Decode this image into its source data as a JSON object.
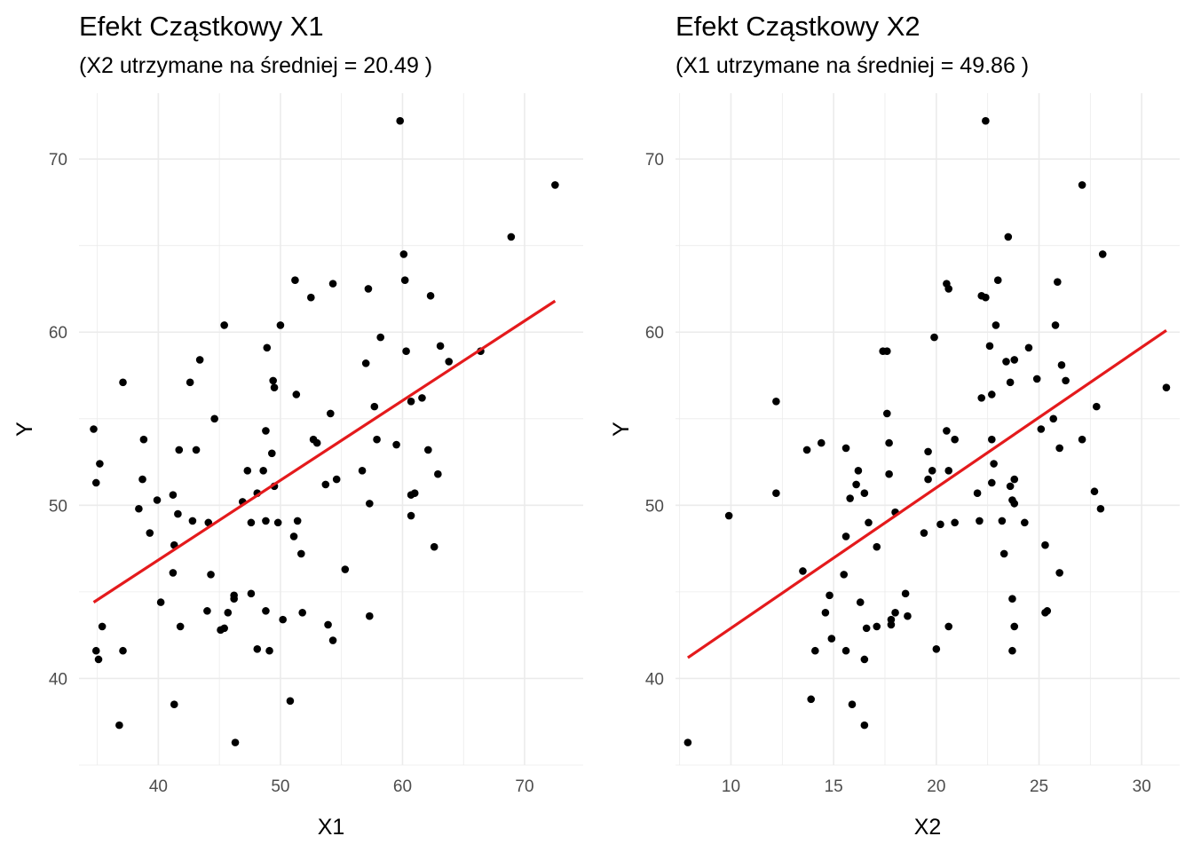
{
  "chart_data": [
    {
      "type": "scatter",
      "title": "Efekt Cząstkowy X1",
      "subtitle": "(X2 utrzymane na średniej = 20.49 )",
      "xlabel": "X1",
      "ylabel": "Y",
      "xlim": [
        33.5,
        74.8
      ],
      "ylim": [
        35,
        73.8
      ],
      "xticks": [
        40,
        50,
        60,
        70
      ],
      "yticks": [
        40,
        50,
        60,
        70
      ],
      "grid": true,
      "colors": {
        "points": "#000000",
        "fit_line": "#e41a1c",
        "grid": "#ebebeb"
      },
      "fit_line": {
        "x": [
          34.7,
          72.5
        ],
        "y": [
          44.4,
          61.8
        ]
      },
      "points": [
        {
          "x": 34.7,
          "y": 54.4
        },
        {
          "x": 34.9,
          "y": 51.3
        },
        {
          "x": 35.2,
          "y": 52.4
        },
        {
          "x": 35.4,
          "y": 43.0
        },
        {
          "x": 34.9,
          "y": 41.6
        },
        {
          "x": 35.1,
          "y": 41.1
        },
        {
          "x": 36.8,
          "y": 37.3
        },
        {
          "x": 37.1,
          "y": 57.1
        },
        {
          "x": 37.1,
          "y": 41.6
        },
        {
          "x": 38.4,
          "y": 49.8
        },
        {
          "x": 38.7,
          "y": 51.5
        },
        {
          "x": 38.8,
          "y": 53.8
        },
        {
          "x": 39.3,
          "y": 48.4
        },
        {
          "x": 39.9,
          "y": 50.3
        },
        {
          "x": 40.2,
          "y": 44.4
        },
        {
          "x": 41.2,
          "y": 50.6
        },
        {
          "x": 41.3,
          "y": 47.7
        },
        {
          "x": 41.2,
          "y": 46.1
        },
        {
          "x": 41.3,
          "y": 38.5
        },
        {
          "x": 41.6,
          "y": 49.5
        },
        {
          "x": 41.7,
          "y": 53.2
        },
        {
          "x": 41.8,
          "y": 43.0
        },
        {
          "x": 42.6,
          "y": 57.1
        },
        {
          "x": 42.8,
          "y": 49.1
        },
        {
          "x": 43.1,
          "y": 53.2
        },
        {
          "x": 43.4,
          "y": 58.4
        },
        {
          "x": 44.0,
          "y": 43.9
        },
        {
          "x": 44.1,
          "y": 49.0
        },
        {
          "x": 44.3,
          "y": 46.0
        },
        {
          "x": 44.6,
          "y": 55.0
        },
        {
          "x": 45.1,
          "y": 42.8
        },
        {
          "x": 45.4,
          "y": 42.9
        },
        {
          "x": 45.4,
          "y": 60.4
        },
        {
          "x": 45.7,
          "y": 43.8
        },
        {
          "x": 46.2,
          "y": 44.8
        },
        {
          "x": 46.2,
          "y": 44.6
        },
        {
          "x": 46.3,
          "y": 36.3
        },
        {
          "x": 46.9,
          "y": 50.2
        },
        {
          "x": 47.3,
          "y": 52.0
        },
        {
          "x": 47.6,
          "y": 49.0
        },
        {
          "x": 47.6,
          "y": 44.9
        },
        {
          "x": 48.1,
          "y": 41.7
        },
        {
          "x": 48.1,
          "y": 50.7
        },
        {
          "x": 48.6,
          "y": 52.0
        },
        {
          "x": 48.8,
          "y": 54.3
        },
        {
          "x": 48.9,
          "y": 59.1
        },
        {
          "x": 48.8,
          "y": 49.1
        },
        {
          "x": 48.8,
          "y": 43.9
        },
        {
          "x": 49.1,
          "y": 41.6
        },
        {
          "x": 49.3,
          "y": 53.0
        },
        {
          "x": 49.4,
          "y": 57.2
        },
        {
          "x": 49.5,
          "y": 56.8
        },
        {
          "x": 49.5,
          "y": 51.1
        },
        {
          "x": 49.8,
          "y": 49.0
        },
        {
          "x": 50.0,
          "y": 60.4
        },
        {
          "x": 50.2,
          "y": 43.4
        },
        {
          "x": 50.8,
          "y": 38.7
        },
        {
          "x": 51.1,
          "y": 48.2
        },
        {
          "x": 51.2,
          "y": 63.0
        },
        {
          "x": 51.3,
          "y": 56.4
        },
        {
          "x": 51.4,
          "y": 49.1
        },
        {
          "x": 51.7,
          "y": 47.2
        },
        {
          "x": 51.8,
          "y": 43.8
        },
        {
          "x": 52.5,
          "y": 62.0
        },
        {
          "x": 52.7,
          "y": 53.8
        },
        {
          "x": 53.0,
          "y": 53.6
        },
        {
          "x": 53.7,
          "y": 51.2
        },
        {
          "x": 53.9,
          "y": 43.1
        },
        {
          "x": 54.1,
          "y": 55.3
        },
        {
          "x": 54.3,
          "y": 62.8
        },
        {
          "x": 54.3,
          "y": 42.2
        },
        {
          "x": 54.6,
          "y": 51.5
        },
        {
          "x": 55.3,
          "y": 46.3
        },
        {
          "x": 56.7,
          "y": 52.0
        },
        {
          "x": 57.0,
          "y": 58.2
        },
        {
          "x": 57.2,
          "y": 62.5
        },
        {
          "x": 57.3,
          "y": 50.1
        },
        {
          "x": 57.3,
          "y": 43.6
        },
        {
          "x": 57.7,
          "y": 55.7
        },
        {
          "x": 57.9,
          "y": 53.8
        },
        {
          "x": 58.2,
          "y": 59.7
        },
        {
          "x": 59.5,
          "y": 53.5
        },
        {
          "x": 59.8,
          "y": 72.2
        },
        {
          "x": 60.1,
          "y": 64.5
        },
        {
          "x": 60.2,
          "y": 63.0
        },
        {
          "x": 60.3,
          "y": 58.9
        },
        {
          "x": 60.7,
          "y": 56.0
        },
        {
          "x": 60.7,
          "y": 50.6
        },
        {
          "x": 60.7,
          "y": 49.4
        },
        {
          "x": 61.0,
          "y": 50.7
        },
        {
          "x": 61.6,
          "y": 56.2
        },
        {
          "x": 62.1,
          "y": 53.2
        },
        {
          "x": 62.3,
          "y": 62.1
        },
        {
          "x": 62.6,
          "y": 47.6
        },
        {
          "x": 62.9,
          "y": 51.8
        },
        {
          "x": 63.1,
          "y": 59.2
        },
        {
          "x": 63.8,
          "y": 58.3
        },
        {
          "x": 66.4,
          "y": 58.9
        },
        {
          "x": 68.9,
          "y": 65.5
        },
        {
          "x": 72.5,
          "y": 68.5
        }
      ]
    },
    {
      "type": "scatter",
      "title": "Efekt Cząstkowy X2",
      "subtitle": "(X1 utrzymane na średniej = 49.86 )",
      "xlabel": "X2",
      "ylabel": "Y",
      "xlim": [
        7.3,
        31.85
      ],
      "ylim": [
        35,
        73.8
      ],
      "xticks": [
        10,
        15,
        20,
        25,
        30
      ],
      "yticks": [
        40,
        50,
        60,
        70
      ],
      "grid": true,
      "colors": {
        "points": "#000000",
        "fit_line": "#e41a1c",
        "grid": "#ebebeb"
      },
      "fit_line": {
        "x": [
          7.9,
          31.2
        ],
        "y": [
          41.2,
          60.1
        ]
      },
      "points": [
        {
          "x": 7.9,
          "y": 36.3
        },
        {
          "x": 9.9,
          "y": 49.4
        },
        {
          "x": 12.2,
          "y": 56.0
        },
        {
          "x": 12.2,
          "y": 50.7
        },
        {
          "x": 13.5,
          "y": 46.2
        },
        {
          "x": 13.7,
          "y": 53.2
        },
        {
          "x": 13.9,
          "y": 38.8
        },
        {
          "x": 14.1,
          "y": 41.6
        },
        {
          "x": 14.4,
          "y": 53.6
        },
        {
          "x": 14.6,
          "y": 43.8
        },
        {
          "x": 14.8,
          "y": 44.8
        },
        {
          "x": 14.9,
          "y": 42.3
        },
        {
          "x": 15.5,
          "y": 46.0
        },
        {
          "x": 15.6,
          "y": 53.3
        },
        {
          "x": 15.6,
          "y": 48.2
        },
        {
          "x": 15.6,
          "y": 41.6
        },
        {
          "x": 15.8,
          "y": 50.4
        },
        {
          "x": 15.9,
          "y": 38.5
        },
        {
          "x": 16.1,
          "y": 51.2
        },
        {
          "x": 16.2,
          "y": 52.0
        },
        {
          "x": 16.3,
          "y": 44.4
        },
        {
          "x": 16.5,
          "y": 50.7
        },
        {
          "x": 16.5,
          "y": 41.1
        },
        {
          "x": 16.5,
          "y": 37.3
        },
        {
          "x": 16.6,
          "y": 42.9
        },
        {
          "x": 16.7,
          "y": 49.0
        },
        {
          "x": 17.1,
          "y": 47.6
        },
        {
          "x": 17.1,
          "y": 43.0
        },
        {
          "x": 17.4,
          "y": 58.9
        },
        {
          "x": 17.6,
          "y": 58.9
        },
        {
          "x": 17.6,
          "y": 55.3
        },
        {
          "x": 17.7,
          "y": 53.6
        },
        {
          "x": 17.7,
          "y": 51.8
        },
        {
          "x": 17.8,
          "y": 43.1
        },
        {
          "x": 17.8,
          "y": 43.4
        },
        {
          "x": 18.0,
          "y": 43.8
        },
        {
          "x": 18.0,
          "y": 49.6
        },
        {
          "x": 18.5,
          "y": 44.9
        },
        {
          "x": 18.6,
          "y": 43.6
        },
        {
          "x": 19.4,
          "y": 48.4
        },
        {
          "x": 19.6,
          "y": 53.1
        },
        {
          "x": 19.6,
          "y": 51.5
        },
        {
          "x": 19.8,
          "y": 52.0
        },
        {
          "x": 19.9,
          "y": 59.7
        },
        {
          "x": 20.0,
          "y": 41.7
        },
        {
          "x": 20.2,
          "y": 48.9
        },
        {
          "x": 20.5,
          "y": 62.8
        },
        {
          "x": 20.5,
          "y": 54.3
        },
        {
          "x": 20.6,
          "y": 62.5
        },
        {
          "x": 20.6,
          "y": 52.0
        },
        {
          "x": 20.6,
          "y": 43.0
        },
        {
          "x": 20.9,
          "y": 53.8
        },
        {
          "x": 20.9,
          "y": 49.0
        },
        {
          "x": 22.0,
          "y": 50.7
        },
        {
          "x": 22.1,
          "y": 49.1
        },
        {
          "x": 22.2,
          "y": 62.1
        },
        {
          "x": 22.2,
          "y": 56.2
        },
        {
          "x": 22.4,
          "y": 62.0
        },
        {
          "x": 22.4,
          "y": 72.2
        },
        {
          "x": 22.6,
          "y": 59.2
        },
        {
          "x": 22.7,
          "y": 53.8
        },
        {
          "x": 22.7,
          "y": 51.3
        },
        {
          "x": 22.7,
          "y": 56.4
        },
        {
          "x": 22.8,
          "y": 52.4
        },
        {
          "x": 22.9,
          "y": 60.4
        },
        {
          "x": 23.0,
          "y": 63.0
        },
        {
          "x": 23.2,
          "y": 49.1
        },
        {
          "x": 23.3,
          "y": 47.2
        },
        {
          "x": 23.4,
          "y": 58.3
        },
        {
          "x": 23.5,
          "y": 65.5
        },
        {
          "x": 23.6,
          "y": 57.1
        },
        {
          "x": 23.6,
          "y": 51.1
        },
        {
          "x": 23.7,
          "y": 50.3
        },
        {
          "x": 23.7,
          "y": 44.6
        },
        {
          "x": 23.7,
          "y": 41.6
        },
        {
          "x": 23.8,
          "y": 58.4
        },
        {
          "x": 23.8,
          "y": 51.5
        },
        {
          "x": 23.8,
          "y": 50.1
        },
        {
          "x": 23.8,
          "y": 43.0
        },
        {
          "x": 24.3,
          "y": 49.0
        },
        {
          "x": 24.5,
          "y": 59.1
        },
        {
          "x": 24.9,
          "y": 57.3
        },
        {
          "x": 25.1,
          "y": 54.4
        },
        {
          "x": 25.3,
          "y": 47.7
        },
        {
          "x": 25.3,
          "y": 43.8
        },
        {
          "x": 25.4,
          "y": 43.9
        },
        {
          "x": 25.7,
          "y": 55.0
        },
        {
          "x": 25.8,
          "y": 60.4
        },
        {
          "x": 25.9,
          "y": 62.9
        },
        {
          "x": 26.0,
          "y": 53.3
        },
        {
          "x": 26.0,
          "y": 46.1
        },
        {
          "x": 26.1,
          "y": 58.1
        },
        {
          "x": 26.3,
          "y": 57.2
        },
        {
          "x": 27.1,
          "y": 68.5
        },
        {
          "x": 27.1,
          "y": 53.8
        },
        {
          "x": 27.7,
          "y": 50.8
        },
        {
          "x": 27.8,
          "y": 55.7
        },
        {
          "x": 28.1,
          "y": 64.5
        },
        {
          "x": 28.0,
          "y": 49.8
        },
        {
          "x": 31.2,
          "y": 56.8
        }
      ]
    }
  ]
}
